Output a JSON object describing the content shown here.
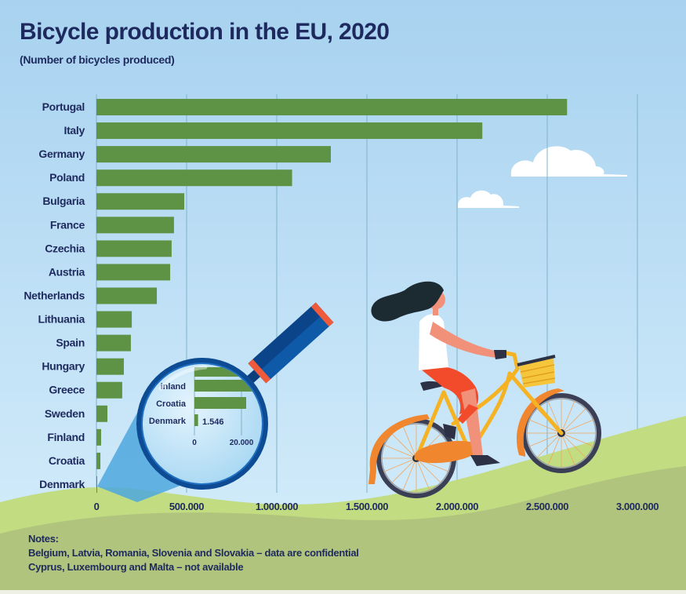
{
  "chart_data": {
    "type": "bar",
    "orientation": "horizontal",
    "title": "Bicycle production in the EU, 2020",
    "subtitle": "(Number of bicycles produced)",
    "xlabel": "",
    "ylabel": "",
    "xlim": [
      0,
      3000000
    ],
    "grid": true,
    "categories": [
      "Portugal",
      "Italy",
      "Germany",
      "Poland",
      "Bulgaria",
      "France",
      "Czechia",
      "Austria",
      "Netherlands",
      "Lithuania",
      "Spain",
      "Hungary",
      "Greece",
      "Sweden",
      "Finland",
      "Croatia",
      "Denmark"
    ],
    "values": [
      2610000,
      2140000,
      1300000,
      1085000,
      487000,
      430000,
      417000,
      409000,
      335000,
      196000,
      191000,
      152000,
      143000,
      61000,
      26000,
      22000,
      1546
    ],
    "x_ticks": [
      0,
      500000,
      1000000,
      1500000,
      2000000,
      2500000,
      3000000
    ],
    "x_tick_labels": [
      "0",
      "500.000",
      "1.000.000",
      "1.500.000",
      "2.000.000",
      "2.500.000",
      "3.000.000"
    ],
    "bar_color": "#5e9346",
    "inset": {
      "description": "magnified view of smallest values",
      "categories": [
        "Finland",
        "Croatia",
        "Denmark"
      ],
      "category_labels": [
        "inland",
        "Croatia",
        "Denmark"
      ],
      "x_ticks": [
        0,
        20000
      ],
      "x_tick_labels": [
        "0",
        "20.000"
      ],
      "data_labels": [
        {
          "category": "Denmark",
          "value": 1546,
          "label": "1.546"
        }
      ]
    }
  },
  "notes": {
    "heading": "Notes:",
    "lines": [
      "Belgium, Latvia, Romania, Slovenia and Slovakia – data are confidential",
      "Cyprus, Luxembourg and Malta – not available"
    ]
  },
  "colors": {
    "sky_top": "#a9d3f0",
    "sky_bottom": "#d3ecfa",
    "text": "#1e2a5e",
    "hill_light": "#c2dc82",
    "ground": "#b2c57f",
    "gridline": "#7fb3c9",
    "magnifier_dark": "#0d4c94",
    "magnifier_accent": "#ef5a3a"
  }
}
